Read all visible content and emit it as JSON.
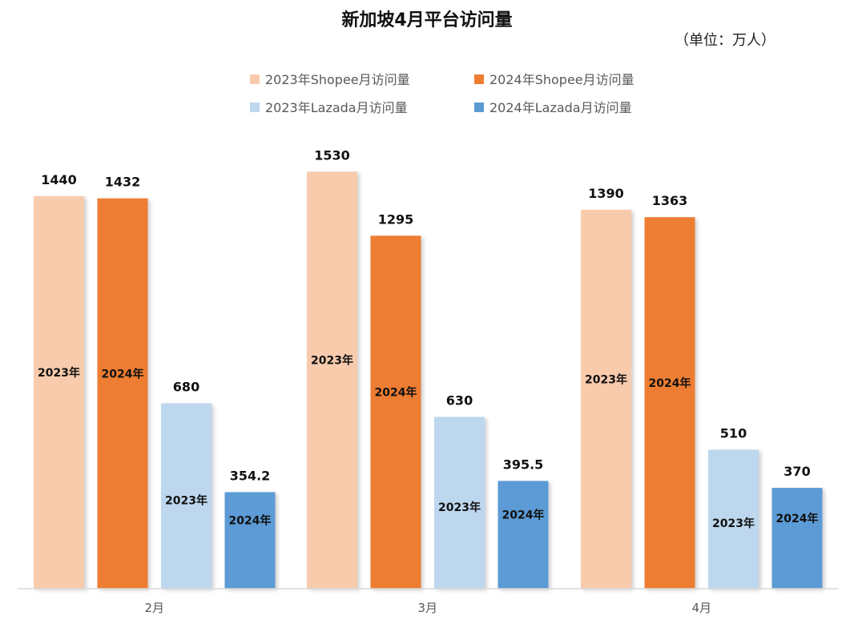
{
  "chart_data": {
    "type": "bar",
    "title": "新加坡4月平台访问量",
    "unit_note": "（单位：万人）",
    "categories": [
      "2月",
      "3月",
      "4月"
    ],
    "series": [
      {
        "name": "2023年Shopee月访问量",
        "color": "#F8CBAD",
        "values": [
          1440,
          1530,
          1390
        ],
        "inner_labels": [
          "2023年",
          "2023年",
          "2023年"
        ]
      },
      {
        "name": "2024年Shopee月访问量",
        "color": "#ED7D31",
        "values": [
          1432,
          1295,
          1363
        ],
        "inner_labels": [
          "2024年",
          "2024年",
          "2024年"
        ]
      },
      {
        "name": "2023年Lazada月访问量",
        "color": "#BDD7EE",
        "values": [
          680,
          630,
          510
        ],
        "inner_labels": [
          "2023年",
          "2023年",
          "2023年"
        ]
      },
      {
        "name": "2024年Lazada月访问量",
        "color": "#5B9BD5",
        "values": [
          354.2,
          395.5,
          370
        ],
        "inner_labels": [
          "2024年",
          "2024年",
          "2024年"
        ]
      }
    ],
    "value_labels": [
      [
        "1440",
        "1530",
        "1390"
      ],
      [
        "1432",
        "1295",
        "1363"
      ],
      [
        "680",
        "630",
        "510"
      ],
      [
        "354.2",
        "395.5",
        "370"
      ]
    ],
    "ylim": [
      0,
      1600
    ],
    "grid": false,
    "legend_position": "top"
  }
}
